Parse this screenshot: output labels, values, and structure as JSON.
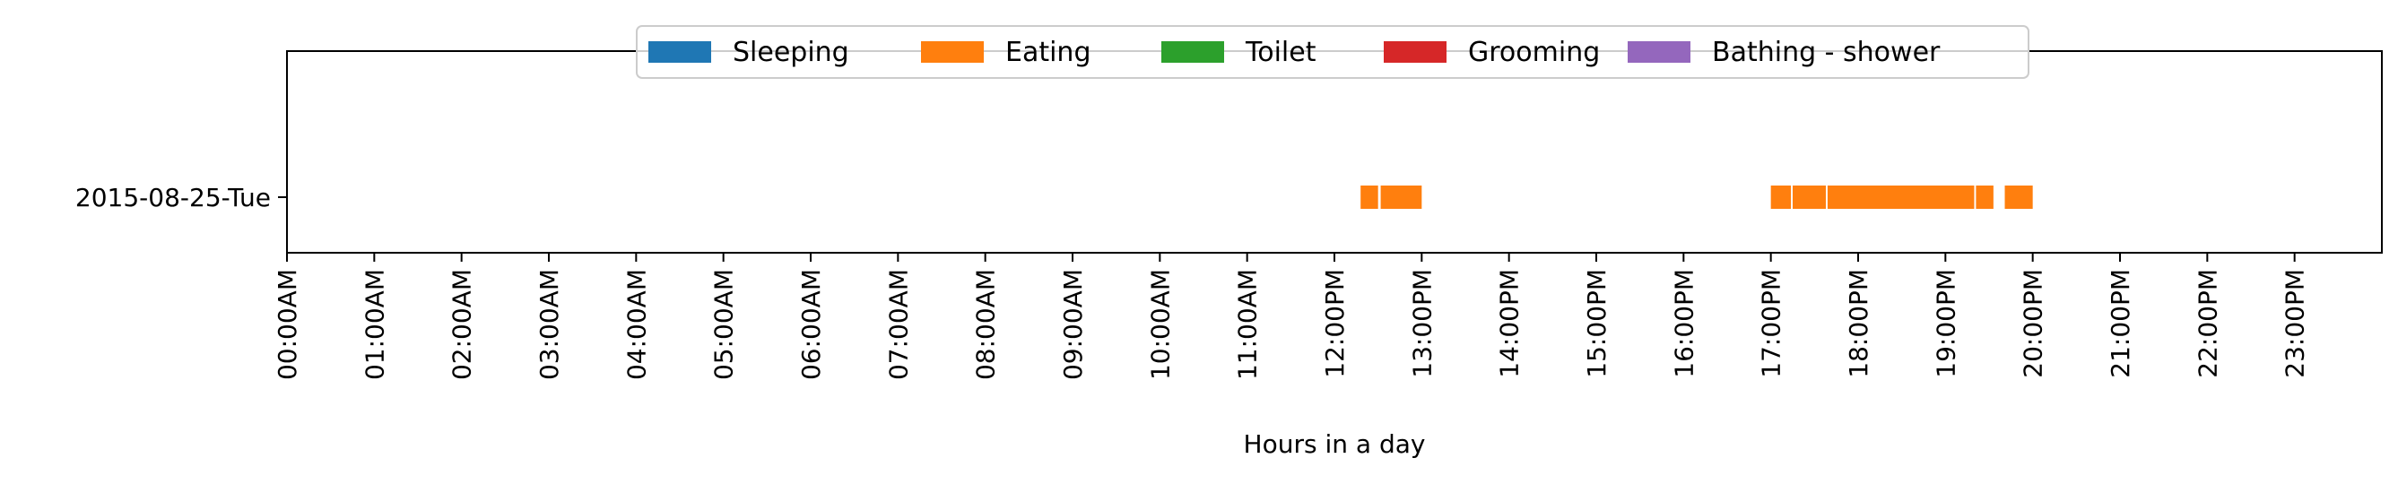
{
  "chart_data": {
    "type": "bar",
    "xlabel": "Hours in a day",
    "ylabel": "",
    "title": "",
    "xlim": [
      0,
      24
    ],
    "grid": false,
    "legend_position": "top-center",
    "categories": [
      "2015-08-25-Tue"
    ],
    "x_ticks": [
      "00:00AM",
      "01:00AM",
      "02:00AM",
      "03:00AM",
      "04:00AM",
      "05:00AM",
      "06:00AM",
      "07:00AM",
      "08:00AM",
      "09:00AM",
      "10:00AM",
      "11:00AM",
      "12:00PM",
      "13:00PM",
      "14:00PM",
      "15:00PM",
      "16:00PM",
      "17:00PM",
      "18:00PM",
      "19:00PM",
      "20:00PM",
      "21:00PM",
      "22:00PM",
      "23:00PM"
    ],
    "series": [
      {
        "name": "Sleeping",
        "color": "#1f77b4",
        "intervals": []
      },
      {
        "name": "Eating",
        "color": "#ff7f0e",
        "intervals": [
          {
            "day": "2015-08-25-Tue",
            "start": 12.3,
            "end": 12.5
          },
          {
            "day": "2015-08-25-Tue",
            "start": 12.53,
            "end": 13.0
          },
          {
            "day": "2015-08-25-Tue",
            "start": 17.0,
            "end": 17.23
          },
          {
            "day": "2015-08-25-Tue",
            "start": 17.25,
            "end": 17.63
          },
          {
            "day": "2015-08-25-Tue",
            "start": 17.65,
            "end": 19.33
          },
          {
            "day": "2015-08-25-Tue",
            "start": 19.35,
            "end": 19.55
          },
          {
            "day": "2015-08-25-Tue",
            "start": 19.68,
            "end": 20.0
          }
        ]
      },
      {
        "name": "Toilet",
        "color": "#2ca02c",
        "intervals": []
      },
      {
        "name": "Grooming",
        "color": "#d62728",
        "intervals": []
      },
      {
        "name": "Bathing - shower",
        "color": "#9467bd",
        "intervals": []
      }
    ]
  }
}
